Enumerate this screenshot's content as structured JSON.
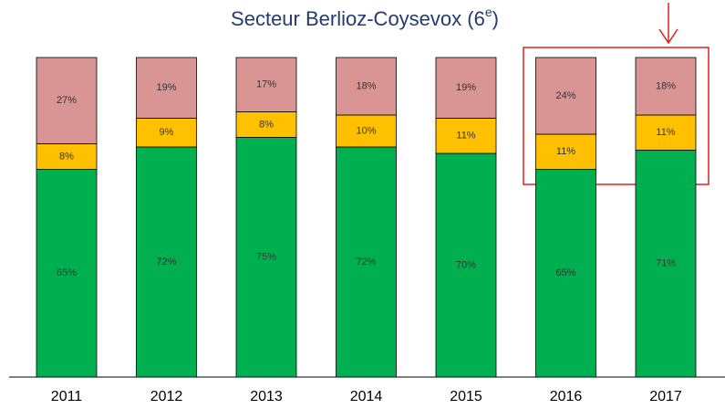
{
  "chart_data": {
    "type": "stacked-bar",
    "title": [
      "Secteur Berlioz-Coysevox (6",
      "e",
      ")"
    ],
    "categories": [
      "2011",
      "2012",
      "2013",
      "2014",
      "2015",
      "2016",
      "2017"
    ],
    "series": [
      {
        "color": "#00b050",
        "values": [
          65,
          72,
          75,
          72,
          70,
          65,
          71
        ],
        "value_labels": [
          "65%",
          "72%",
          "75%",
          "72%",
          "70%",
          "65%",
          "71%"
        ]
      },
      {
        "color": "#ffc000",
        "values": [
          8,
          9,
          8,
          10,
          11,
          11,
          11
        ],
        "value_labels": [
          "8%",
          "9%",
          "8%",
          "10%",
          "11%",
          "11%",
          "11%"
        ]
      },
      {
        "color": "#d99594",
        "values": [
          27,
          19,
          17,
          18,
          19,
          24,
          18
        ],
        "value_labels": [
          "27%",
          "19%",
          "17%",
          "18%",
          "19%",
          "24%",
          "18%"
        ]
      }
    ]
  }
}
